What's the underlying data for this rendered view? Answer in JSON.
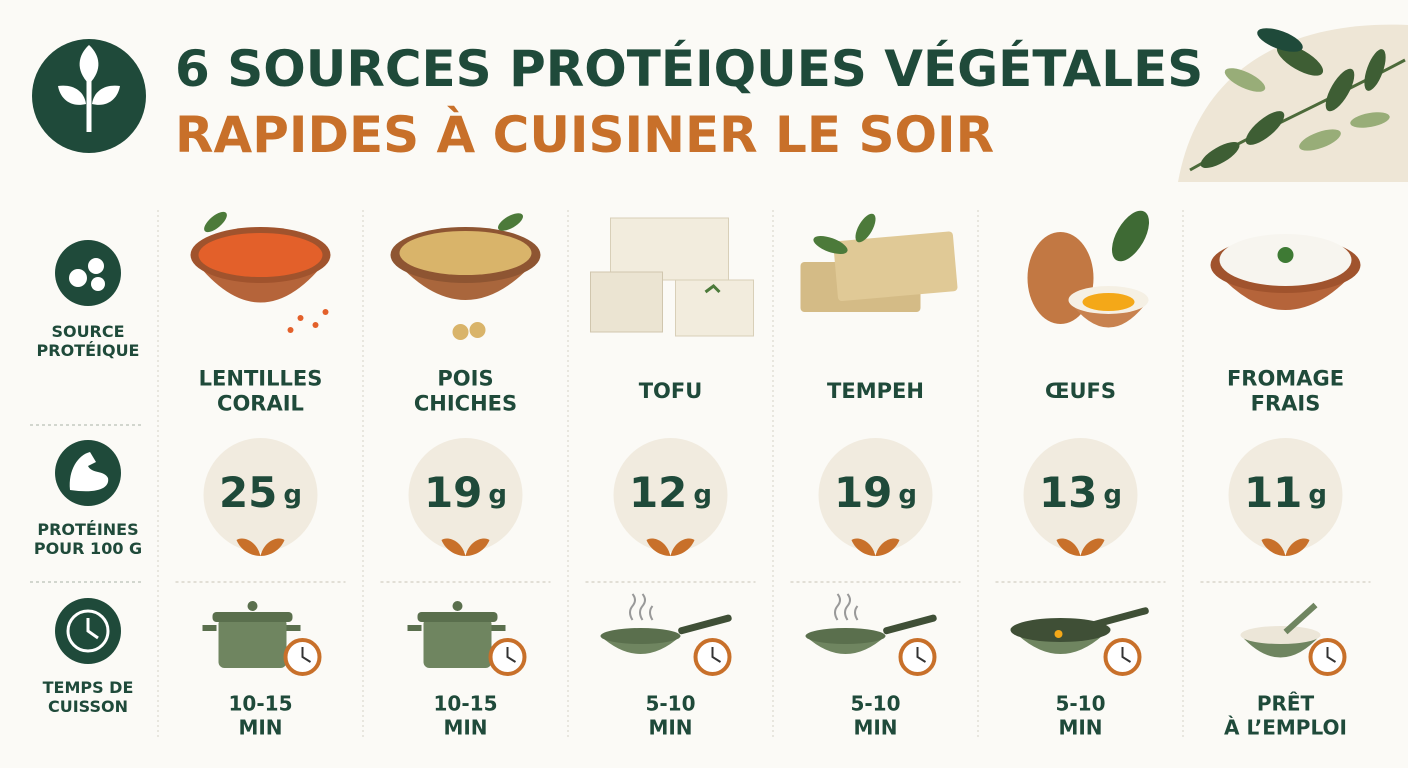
{
  "header": {
    "title_line1": "6 SOURCES PROTÉIQUES VÉGÉTALES",
    "title_line2": "RAPIDES À CUISINER LE SOIR"
  },
  "row_labels": [
    [
      "SOURCE",
      "PROTÉIQUE"
    ],
    [
      "PROTÉINES",
      "POUR 100 G"
    ],
    [
      "TEMPS DE",
      "CUISSON"
    ]
  ],
  "columns": [
    {
      "name": [
        "LENTILLES",
        "CORAIL"
      ],
      "protein": 25,
      "unit": "g",
      "time": [
        "10-15",
        "MIN"
      ]
    },
    {
      "name": [
        "POIS",
        "CHICHES"
      ],
      "protein": 19,
      "unit": "g",
      "time": [
        "10-15",
        "MIN"
      ]
    },
    {
      "name": [
        "TOFU"
      ],
      "protein": 12,
      "unit": "g",
      "time": [
        "5-10",
        "MIN"
      ]
    },
    {
      "name": [
        "TEMPEH"
      ],
      "protein": 19,
      "unit": "g",
      "time": [
        "5-10",
        "MIN"
      ]
    },
    {
      "name": [
        "ŒUFS"
      ],
      "protein": 13,
      "unit": "g",
      "time": [
        "5-10",
        "MIN"
      ]
    },
    {
      "name": [
        "FROMAGE",
        "FRAIS"
      ],
      "protein": 11,
      "unit": "g",
      "time": [
        "PRÊT",
        "À L’EMPLOI"
      ]
    }
  ]
}
